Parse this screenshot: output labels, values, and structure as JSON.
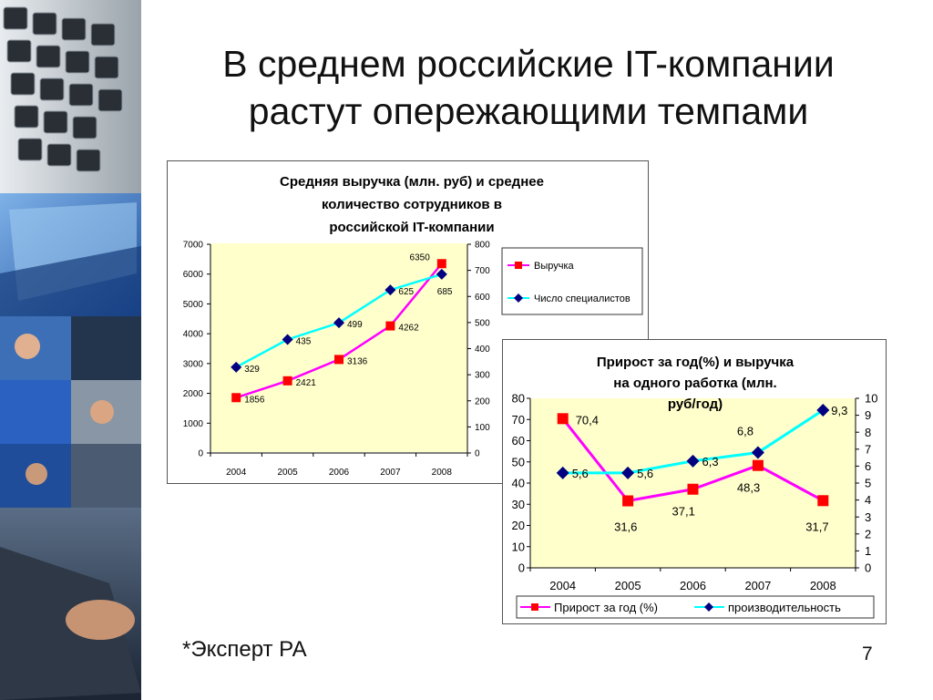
{
  "slide": {
    "title_lines": [
      "В среднем российские IT-компании",
      "растут опережающими темпами"
    ],
    "source_note": "*Эксперт РА",
    "page_number": "7"
  },
  "chart_data": [
    {
      "type": "line",
      "title_lines": [
        "Средняя выручка (млн. руб) и среднее",
        "количество сотрудников в",
        "российской IT-компании"
      ],
      "categories": [
        "2004",
        "2005",
        "2006",
        "2007",
        "2008"
      ],
      "series": [
        {
          "name": "Выручка",
          "values": [
            1856,
            2421,
            3136,
            4262,
            6350
          ],
          "axis": "left",
          "color": "#ff00ff",
          "marker": "square",
          "marker_color": "#ff0000"
        },
        {
          "name": "Число специалистов",
          "values": [
            329,
            435,
            499,
            625,
            685
          ],
          "axis": "right",
          "color": "#00ffff",
          "marker": "diamond",
          "marker_color": "#000080"
        }
      ],
      "left_axis": {
        "min": 0,
        "max": 7000,
        "ticks": [
          "0",
          "1000",
          "2000",
          "3000",
          "4000",
          "5000",
          "6000",
          "7000"
        ]
      },
      "right_axis": {
        "min": 0,
        "max": 800,
        "ticks": [
          "0",
          "100",
          "200",
          "300",
          "400",
          "500",
          "600",
          "700",
          "800"
        ]
      },
      "plot_background": "#ffffcc",
      "legend_position": "right",
      "grid": false
    },
    {
      "type": "line",
      "title_lines": [
        "Прирост за год(%) и выручка",
        "на одного работка (млн.",
        "руб/год)"
      ],
      "categories": [
        "2004",
        "2005",
        "2006",
        "2007",
        "2008"
      ],
      "series": [
        {
          "name": "Прирост за год (%)",
          "values": [
            70.4,
            31.6,
            37.1,
            48.3,
            31.7
          ],
          "labels": [
            "70,4",
            "31,6",
            "37,1",
            "48,3",
            "31,7"
          ],
          "axis": "left",
          "color": "#ff00ff",
          "marker": "square",
          "marker_color": "#ff0000"
        },
        {
          "name": "производительность",
          "values": [
            5.6,
            5.6,
            6.3,
            6.8,
            9.3
          ],
          "labels": [
            "5,6",
            "5,6",
            "6,3",
            "6,8",
            "9,3"
          ],
          "axis": "right",
          "color": "#00ffff",
          "marker": "diamond",
          "marker_color": "#000080"
        }
      ],
      "left_axis": {
        "min": 0,
        "max": 80,
        "ticks": [
          "0",
          "10",
          "20",
          "30",
          "40",
          "50",
          "60",
          "70",
          "80"
        ]
      },
      "right_axis": {
        "min": 0,
        "max": 10,
        "ticks": [
          "0",
          "1",
          "2",
          "3",
          "4",
          "5",
          "6",
          "7",
          "8",
          "9",
          "10"
        ]
      },
      "plot_background": "#ffffcc",
      "legend_position": "bottom",
      "grid": false
    }
  ]
}
